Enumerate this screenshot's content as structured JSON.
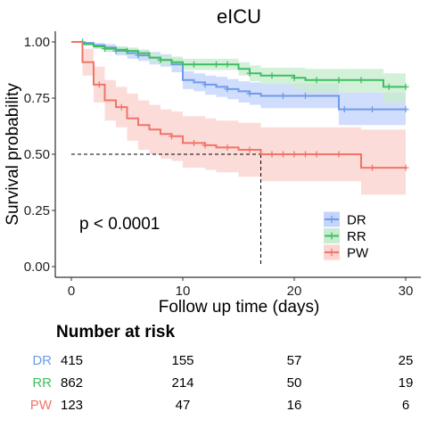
{
  "chart_data": {
    "type": "line",
    "chart_kind": "kaplan-meier survival curve",
    "title": "eICU",
    "xlabel": "Follow up time (days)",
    "ylabel": "Survival probability",
    "xlim": [
      0,
      30
    ],
    "ylim": [
      0,
      1
    ],
    "x_ticks": [
      0,
      10,
      20,
      30
    ],
    "x_tick_labels": [
      "0",
      "10",
      "20",
      "30"
    ],
    "y_ticks": [
      0,
      0.25,
      0.5,
      0.75,
      1.0
    ],
    "y_tick_labels": [
      "0.00",
      "0.25",
      "0.50",
      "0.75",
      "1.00"
    ],
    "grid": false,
    "legend_position": "bottom-right",
    "annotation": "p < 0.0001",
    "median_line": {
      "y": 0.5,
      "x": 17
    },
    "series": [
      {
        "name": "DR",
        "color": "#6f9be7",
        "fill": "#c4d4fb",
        "steps": [
          [
            0,
            1.0
          ],
          [
            1,
            0.995
          ],
          [
            2,
            0.985
          ],
          [
            3,
            0.975
          ],
          [
            4,
            0.96
          ],
          [
            5,
            0.95
          ],
          [
            6,
            0.94
          ],
          [
            7,
            0.93
          ],
          [
            8,
            0.92
          ],
          [
            9,
            0.9
          ],
          [
            10,
            0.83
          ],
          [
            11,
            0.82
          ],
          [
            12,
            0.81
          ],
          [
            13,
            0.8
          ],
          [
            14,
            0.79
          ],
          [
            15,
            0.78
          ],
          [
            16,
            0.77
          ],
          [
            17,
            0.76
          ],
          [
            24,
            0.7
          ]
        ],
        "upper": [
          [
            0,
            1.0
          ],
          [
            1,
            1.0
          ],
          [
            2,
            0.995
          ],
          [
            3,
            0.99
          ],
          [
            4,
            0.98
          ],
          [
            5,
            0.97
          ],
          [
            6,
            0.965
          ],
          [
            7,
            0.955
          ],
          [
            8,
            0.945
          ],
          [
            9,
            0.93
          ],
          [
            10,
            0.87
          ],
          [
            11,
            0.86
          ],
          [
            12,
            0.85
          ],
          [
            13,
            0.845
          ],
          [
            14,
            0.835
          ],
          [
            15,
            0.825
          ],
          [
            16,
            0.82
          ],
          [
            17,
            0.815
          ],
          [
            24,
            0.775
          ]
        ],
        "lower": [
          [
            0,
            1.0
          ],
          [
            1,
            0.985
          ],
          [
            2,
            0.97
          ],
          [
            3,
            0.955
          ],
          [
            4,
            0.94
          ],
          [
            5,
            0.925
          ],
          [
            6,
            0.915
          ],
          [
            7,
            0.9
          ],
          [
            8,
            0.89
          ],
          [
            9,
            0.865
          ],
          [
            10,
            0.79
          ],
          [
            11,
            0.78
          ],
          [
            12,
            0.765
          ],
          [
            13,
            0.755
          ],
          [
            14,
            0.745
          ],
          [
            15,
            0.73
          ],
          [
            16,
            0.72
          ],
          [
            17,
            0.705
          ],
          [
            24,
            0.63
          ]
        ],
        "censors": [
          [
            4,
            0.96
          ],
          [
            6,
            0.94
          ],
          [
            8,
            0.92
          ],
          [
            12,
            0.81
          ],
          [
            14,
            0.79
          ],
          [
            16,
            0.77
          ],
          [
            19,
            0.76
          ],
          [
            21,
            0.76
          ],
          [
            24.5,
            0.7
          ],
          [
            27,
            0.7
          ],
          [
            30,
            0.7
          ]
        ]
      },
      {
        "name": "RR",
        "color": "#3fbe61",
        "fill": "#c8eccf",
        "steps": [
          [
            0,
            1.0
          ],
          [
            1,
            0.99
          ],
          [
            2,
            0.98
          ],
          [
            3,
            0.97
          ],
          [
            4,
            0.965
          ],
          [
            5,
            0.96
          ],
          [
            6,
            0.95
          ],
          [
            7,
            0.93
          ],
          [
            8,
            0.92
          ],
          [
            9,
            0.91
          ],
          [
            10,
            0.9
          ],
          [
            15,
            0.88
          ],
          [
            16,
            0.86
          ],
          [
            17,
            0.85
          ],
          [
            20,
            0.84
          ],
          [
            21,
            0.83
          ],
          [
            28,
            0.8
          ]
        ],
        "upper": [
          [
            0,
            1.0
          ],
          [
            1,
            0.997
          ],
          [
            2,
            0.99
          ],
          [
            3,
            0.985
          ],
          [
            4,
            0.98
          ],
          [
            5,
            0.975
          ],
          [
            6,
            0.965
          ],
          [
            7,
            0.95
          ],
          [
            8,
            0.94
          ],
          [
            9,
            0.935
          ],
          [
            10,
            0.925
          ],
          [
            15,
            0.91
          ],
          [
            16,
            0.895
          ],
          [
            17,
            0.885
          ],
          [
            20,
            0.885
          ],
          [
            21,
            0.88
          ],
          [
            28,
            0.86
          ]
        ],
        "lower": [
          [
            0,
            1.0
          ],
          [
            1,
            0.985
          ],
          [
            2,
            0.97
          ],
          [
            3,
            0.955
          ],
          [
            4,
            0.95
          ],
          [
            5,
            0.94
          ],
          [
            6,
            0.93
          ],
          [
            7,
            0.91
          ],
          [
            8,
            0.9
          ],
          [
            9,
            0.885
          ],
          [
            10,
            0.875
          ],
          [
            15,
            0.85
          ],
          [
            16,
            0.825
          ],
          [
            17,
            0.81
          ],
          [
            20,
            0.79
          ],
          [
            21,
            0.775
          ],
          [
            28,
            0.73
          ]
        ],
        "censors": [
          [
            1,
            1.0
          ],
          [
            3,
            0.97
          ],
          [
            5,
            0.96
          ],
          [
            8,
            0.92
          ],
          [
            11,
            0.9
          ],
          [
            13,
            0.9
          ],
          [
            14,
            0.9
          ],
          [
            16,
            0.86
          ],
          [
            18,
            0.85
          ],
          [
            20,
            0.84
          ],
          [
            22,
            0.83
          ],
          [
            24,
            0.83
          ],
          [
            26,
            0.83
          ],
          [
            28.5,
            0.8
          ],
          [
            30,
            0.8
          ]
        ]
      },
      {
        "name": "PW",
        "color": "#f07468",
        "fill": "#fbd3d0",
        "steps": [
          [
            0,
            1.0
          ],
          [
            1,
            0.91
          ],
          [
            2,
            0.81
          ],
          [
            3,
            0.74
          ],
          [
            4,
            0.71
          ],
          [
            5,
            0.66
          ],
          [
            6,
            0.63
          ],
          [
            7,
            0.61
          ],
          [
            8,
            0.59
          ],
          [
            9,
            0.58
          ],
          [
            10,
            0.55
          ],
          [
            12,
            0.54
          ],
          [
            13,
            0.53
          ],
          [
            15,
            0.52
          ],
          [
            17,
            0.5
          ],
          [
            26,
            0.44
          ]
        ],
        "upper": [
          [
            0,
            1.0
          ],
          [
            1,
            0.97
          ],
          [
            2,
            0.89
          ],
          [
            3,
            0.83
          ],
          [
            4,
            0.8
          ],
          [
            5,
            0.77
          ],
          [
            6,
            0.74
          ],
          [
            7,
            0.72
          ],
          [
            8,
            0.7
          ],
          [
            9,
            0.69
          ],
          [
            10,
            0.67
          ],
          [
            12,
            0.66
          ],
          [
            13,
            0.65
          ],
          [
            15,
            0.64
          ],
          [
            17,
            0.62
          ],
          [
            26,
            0.61
          ]
        ],
        "lower": [
          [
            0,
            1.0
          ],
          [
            1,
            0.85
          ],
          [
            2,
            0.73
          ],
          [
            3,
            0.65
          ],
          [
            4,
            0.62
          ],
          [
            5,
            0.56
          ],
          [
            6,
            0.52
          ],
          [
            7,
            0.5
          ],
          [
            8,
            0.48
          ],
          [
            9,
            0.47
          ],
          [
            10,
            0.44
          ],
          [
            12,
            0.43
          ],
          [
            13,
            0.42
          ],
          [
            15,
            0.4
          ],
          [
            17,
            0.38
          ],
          [
            26,
            0.32
          ]
        ],
        "censors": [
          [
            2.5,
            0.81
          ],
          [
            4.5,
            0.71
          ],
          [
            9,
            0.58
          ],
          [
            11,
            0.55
          ],
          [
            12,
            0.54
          ],
          [
            14,
            0.53
          ],
          [
            16,
            0.52
          ],
          [
            18,
            0.5
          ],
          [
            19,
            0.5
          ],
          [
            20,
            0.5
          ],
          [
            21,
            0.5
          ],
          [
            22,
            0.5
          ],
          [
            24,
            0.5
          ],
          [
            27,
            0.44
          ],
          [
            30,
            0.44
          ]
        ]
      }
    ],
    "risk_table": {
      "title": "Number at risk",
      "times": [
        0,
        10,
        20,
        30
      ],
      "rows": [
        {
          "strata": "DR",
          "color": "#6f9be7",
          "values": [
            "415",
            "155",
            "57",
            "25"
          ]
        },
        {
          "strata": "RR",
          "color": "#3fbe61",
          "values": [
            "862",
            "214",
            "50",
            "19"
          ]
        },
        {
          "strata": "PW",
          "color": "#f07468",
          "values": [
            "123",
            "47",
            "16",
            "6"
          ]
        }
      ]
    }
  }
}
